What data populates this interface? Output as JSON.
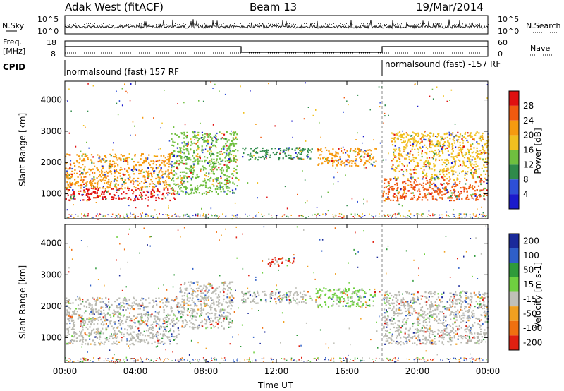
{
  "header": {
    "station": "Adak West (fitACF)",
    "beam": "Beam 13",
    "date": "19/Mar/2014"
  },
  "left_labels": {
    "nsky": "N.Sky",
    "freq_line1": "Freq.",
    "freq_line2": "[MHz]",
    "cpid": "CPID"
  },
  "right_labels": {
    "nsearch": "N.Search",
    "nave": "Nave"
  },
  "noise_axis": {
    "left_top": "10^5",
    "left_bottom": "10^0",
    "right_top": "10^5",
    "right_bottom": "10^0"
  },
  "freq_axis": {
    "left_top": "18",
    "left_bottom": "8",
    "right_top": "60",
    "right_bottom": "0"
  },
  "cpid_labels": [
    "normalsound (fast) 157 RF",
    "normalsound (fast) -157 RF"
  ],
  "colors": {
    "power": [
      "#1a1acc",
      "#2e4fd6",
      "#2f8a4a",
      "#6fbf3f",
      "#f0c020",
      "#f59a10",
      "#f05a10",
      "#e01010"
    ],
    "velocity": [
      "#1a2a9a",
      "#2f5fc8",
      "#2f9a3a",
      "#6fd040",
      "#c0c0b8",
      "#f0a020",
      "#f07010",
      "#e02010"
    ],
    "ground_scatter": "#b8b8b0"
  },
  "chart_data": [
    {
      "type": "heatmap",
      "name": "power",
      "xlabel": "",
      "ylabel": "Slant Range [km]",
      "x_ticks": [
        "00:00",
        "04:00",
        "08:00",
        "12:00",
        "16:00",
        "20:00",
        "00:00"
      ],
      "y_ticks": [
        1000,
        2000,
        3000,
        4000
      ],
      "ylim": [
        200,
        4600
      ],
      "colorbar": {
        "label": "Power [dB]",
        "ticks": [
          4,
          8,
          12,
          16,
          20,
          24,
          28
        ],
        "range": [
          0,
          32
        ]
      },
      "regions": [
        {
          "t0": 0.0,
          "t1": 6.2,
          "r0": 800,
          "r1": 1200,
          "value": 28
        },
        {
          "t0": 0.0,
          "t1": 6.0,
          "r0": 1200,
          "r1": 2300,
          "value": 20
        },
        {
          "t0": 6.0,
          "t1": 9.8,
          "r0": 1000,
          "r1": 3000,
          "value": 12
        },
        {
          "t0": 10.0,
          "t1": 14.0,
          "r0": 2100,
          "r1": 2500,
          "value": 8
        },
        {
          "t0": 14.3,
          "t1": 17.7,
          "r0": 1900,
          "r1": 2500,
          "value": 22
        },
        {
          "t0": 18.0,
          "t1": 24.0,
          "r0": 800,
          "r1": 1500,
          "value": 26
        },
        {
          "t0": 18.5,
          "t1": 24.0,
          "r0": 1500,
          "r1": 3000,
          "value": 16
        }
      ]
    },
    {
      "type": "heatmap",
      "name": "velocity",
      "xlabel": "Time UT",
      "ylabel": "Slant Range [km]",
      "x_ticks": [
        "00:00",
        "04:00",
        "08:00",
        "12:00",
        "16:00",
        "20:00",
        "00:00"
      ],
      "y_ticks": [
        1000,
        2000,
        3000,
        4000
      ],
      "ylim": [
        200,
        4600
      ],
      "colorbar": {
        "label": "Velocity [m s-1]",
        "ticks": [
          200,
          100,
          50,
          15,
          -15,
          -50,
          -100,
          -200
        ],
        "range": [
          -250,
          250
        ]
      },
      "regions": [
        {
          "t0": 0.0,
          "t1": 6.5,
          "r0": 800,
          "r1": 2300,
          "value": 0
        },
        {
          "t0": 6.5,
          "t1": 9.5,
          "r0": 1300,
          "r1": 2800,
          "value": 0
        },
        {
          "t0": 10.0,
          "t1": 14.0,
          "r0": 2100,
          "r1": 2500,
          "value": 0
        },
        {
          "t0": 14.2,
          "t1": 17.6,
          "r0": 2000,
          "r1": 2600,
          "value": 60
        },
        {
          "t0": 11.5,
          "t1": 13.0,
          "r0": 3300,
          "r1": 3600,
          "value": -200
        },
        {
          "t0": 18.0,
          "t1": 24.0,
          "r0": 800,
          "r1": 2500,
          "value": 0
        }
      ]
    }
  ]
}
